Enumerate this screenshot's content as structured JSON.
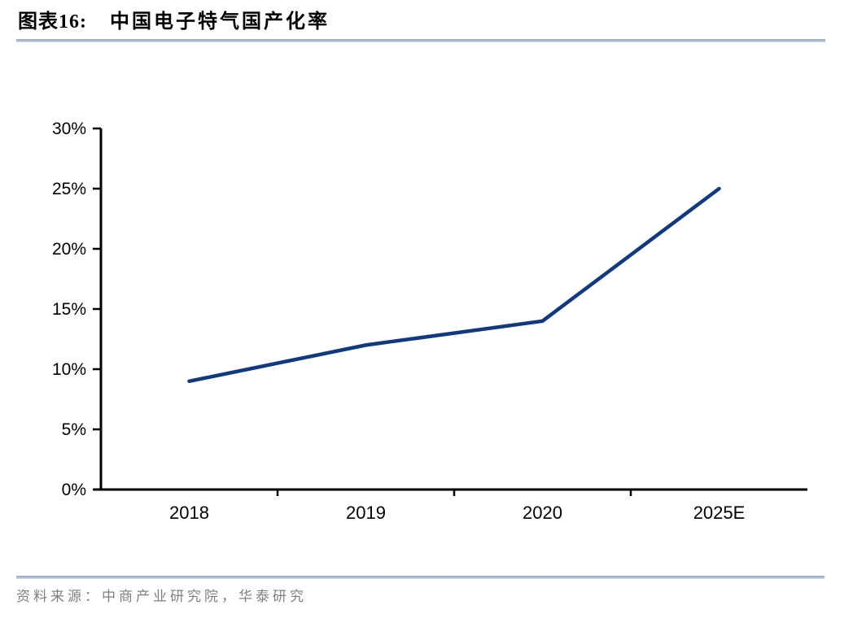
{
  "header": {
    "label": "图表16:",
    "title": "中国电子特气国产化率"
  },
  "footer": {
    "source": "资料来源：中商产业研究院，华泰研究"
  },
  "chart_data": {
    "type": "line",
    "title": "中国电子特气国产化率",
    "categories": [
      "2018",
      "2019",
      "2020",
      "2025E"
    ],
    "series": [
      {
        "name": "中国电子特气国产化率",
        "values": [
          9,
          12,
          14,
          25
        ]
      }
    ],
    "unit": "%",
    "ylim": [
      0,
      30
    ],
    "yticks": [
      {
        "value": 0,
        "label": "0%"
      },
      {
        "value": 5,
        "label": "5%"
      },
      {
        "value": 10,
        "label": "10%"
      },
      {
        "value": 15,
        "label": "15%"
      },
      {
        "value": 20,
        "label": "20%"
      },
      {
        "value": 25,
        "label": "25%"
      },
      {
        "value": 30,
        "label": "30%"
      }
    ],
    "grid": false,
    "legend": "none",
    "line_color": "#103a7d"
  },
  "colors": {
    "line": "#103a7d",
    "axis": "#000000",
    "tick_text": "#000000",
    "rule": "#9fb2c8",
    "source_text": "#7f7f7f",
    "title_text": "#000000"
  }
}
